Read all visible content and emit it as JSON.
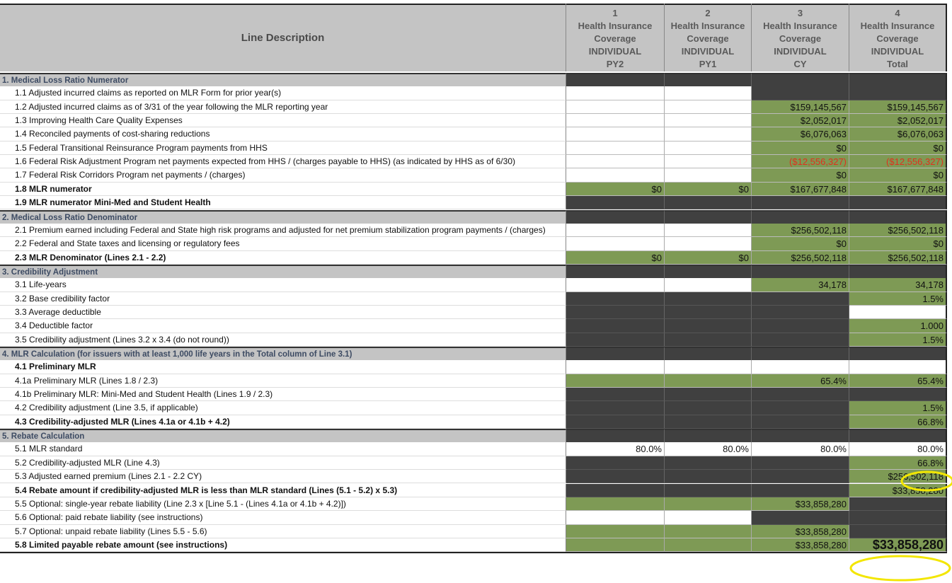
{
  "header": {
    "title": "Line Description",
    "columns": [
      {
        "number": "1",
        "lines": [
          "Health Insurance",
          "Coverage",
          "INDIVIDUAL",
          "PY2"
        ]
      },
      {
        "number": "2",
        "lines": [
          "Health Insurance",
          "Coverage",
          "INDIVIDUAL",
          "PY1"
        ]
      },
      {
        "number": "3",
        "lines": [
          "Health Insurance",
          "Coverage",
          "INDIVIDUAL",
          "CY"
        ]
      },
      {
        "number": "4",
        "lines": [
          "Health Insurance",
          "Coverage",
          "INDIVIDUAL",
          "Total"
        ]
      }
    ]
  },
  "sections": [
    {
      "title": "1. Medical Loss Ratio Numerator",
      "rows": [
        {
          "label": "1.1 Adjusted incurred claims as reported on MLR Form for prior year(s)",
          "values": [
            null,
            null,
            null,
            null
          ]
        },
        {
          "label": "1.2 Adjusted incurred claims as of 3/31 of the year following the MLR reporting year",
          "values": [
            null,
            null,
            "$159,145,567",
            "$159,145,567"
          ]
        },
        {
          "label": "1.3 Improving Health Care Quality Expenses",
          "values": [
            null,
            null,
            "$2,052,017",
            "$2,052,017"
          ]
        },
        {
          "label": "1.4 Reconciled payments of cost-sharing reductions",
          "values": [
            null,
            null,
            "$6,076,063",
            "$6,076,063"
          ]
        },
        {
          "label": "1.5 Federal Transitional Reinsurance Program payments from HHS",
          "values": [
            null,
            null,
            "$0",
            "$0"
          ]
        },
        {
          "label": "1.6 Federal Risk Adjustment Program net payments expected from HHS / (charges payable to HHS) (as indicated by HHS as of 6/30)",
          "values": [
            null,
            null,
            "($12,556,327)",
            "($12,556,327)"
          ]
        },
        {
          "label": "1.7 Federal Risk Corridors Program net payments / (charges)",
          "values": [
            null,
            null,
            "$0",
            "$0"
          ]
        },
        {
          "label": "1.8 MLR numerator",
          "bold": true,
          "values": [
            "$0",
            "$0",
            "$167,677,848",
            "$167,677,848"
          ]
        },
        {
          "label": "1.9 MLR numerator Mini-Med and Student Health",
          "bold": true,
          "values": [
            null,
            null,
            null,
            null
          ]
        }
      ]
    },
    {
      "title": "2. Medical Loss Ratio Denominator",
      "rows": [
        {
          "label": "2.1 Premium earned including Federal and State high risk programs and adjusted for net premium stabilization program payments / (charges)",
          "values": [
            null,
            null,
            "$256,502,118",
            "$256,502,118"
          ]
        },
        {
          "label": "2.2 Federal and State taxes and licensing or regulatory fees",
          "values": [
            null,
            null,
            "$0",
            "$0"
          ]
        },
        {
          "label": "2.3 MLR Denominator (Lines 2.1 - 2.2)",
          "bold": true,
          "values": [
            "$0",
            "$0",
            "$256,502,118",
            "$256,502,118"
          ]
        }
      ]
    },
    {
      "title": "3. Credibility Adjustment",
      "rows": [
        {
          "label": "3.1 Life-years",
          "values": [
            null,
            null,
            "34,178",
            "34,178"
          ]
        },
        {
          "label": "3.2 Base credibility factor",
          "values": [
            null,
            null,
            null,
            "1.5%"
          ]
        },
        {
          "label": "3.3 Average deductible",
          "values": [
            null,
            null,
            null,
            null
          ]
        },
        {
          "label": "3.4 Deductible factor",
          "values": [
            null,
            null,
            null,
            "1.000"
          ]
        },
        {
          "label": "3.5 Credibility adjustment (Lines 3.2 x 3.4 (do not round))",
          "values": [
            null,
            null,
            null,
            "1.5%"
          ]
        }
      ]
    },
    {
      "title": "4. MLR Calculation (for issuers with at least 1,000 life years in the Total column of Line 3.1)",
      "rows": [
        {
          "label": "4.1 Preliminary MLR",
          "bold": true,
          "values": [
            null,
            null,
            null,
            null
          ]
        },
        {
          "label": "4.1a  Preliminary MLR (Lines 1.8 / 2.3)",
          "values": [
            null,
            null,
            "65.4%",
            "65.4%"
          ]
        },
        {
          "label": "4.1b  Preliminary MLR: Mini-Med and Student Health  (Lines 1.9 / 2.3)",
          "values": [
            null,
            null,
            null,
            null
          ]
        },
        {
          "label": "4.2 Credibility adjustment (Line 3.5, if applicable)",
          "values": [
            null,
            null,
            null,
            "1.5%"
          ]
        },
        {
          "label": "4.3 Credibility-adjusted MLR (Lines 4.1a or 4.1b + 4.2)",
          "bold": true,
          "values": [
            null,
            null,
            null,
            "66.8%"
          ]
        }
      ]
    },
    {
      "title": "5. Rebate Calculation",
      "rows": [
        {
          "label": "5.1 MLR standard",
          "values": [
            "80.0%",
            "80.0%",
            "80.0%",
            "80.0%"
          ]
        },
        {
          "label": "5.2 Credibility-adjusted MLR (Line 4.3)",
          "values": [
            null,
            null,
            null,
            "66.8%"
          ]
        },
        {
          "label": "5.3 Adjusted earned premium (Lines 2.1 - 2.2 CY)",
          "values": [
            null,
            null,
            null,
            "$256,502,118"
          ]
        },
        {
          "label": "5.4 Rebate amount if credibility-adjusted MLR is less than MLR standard (Lines (5.1 - 5.2) x 5.3)",
          "bold": true,
          "values": [
            null,
            null,
            null,
            "$33,858,280"
          ]
        },
        {
          "label": "5.5 Optional: single-year rebate liability (Line 2.3 x [Line 5.1 - (Lines 4.1a or 4.1b + 4.2)])",
          "values": [
            null,
            null,
            "$33,858,280",
            null
          ]
        },
        {
          "label": "5.6 Optional: paid rebate liability (see instructions)",
          "values": [
            null,
            null,
            null,
            null
          ]
        },
        {
          "label": "5.7 Optional: unpaid rebate liability (Lines 5.5 - 5.6)",
          "values": [
            null,
            null,
            "$33,858,280",
            null
          ]
        },
        {
          "label": "5.8 Limited payable rebate amount (see instructions)",
          "bold": true,
          "values": [
            null,
            null,
            "$33,858,280",
            "$33,858,280"
          ]
        }
      ]
    }
  ]
}
